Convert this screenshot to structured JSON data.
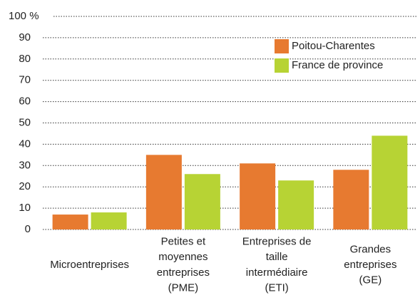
{
  "chart_data": {
    "type": "bar",
    "categories": [
      [
        "Microentreprises"
      ],
      [
        "Petites et",
        "moyennes",
        "entreprises",
        "(PME)"
      ],
      [
        "Entreprises de",
        "taille",
        "intermédiaire",
        "(ETI)"
      ],
      [
        "Grandes",
        "entreprises",
        "(GE)"
      ]
    ],
    "series": [
      {
        "name": "Poitou-Charentes",
        "color": "#e77a30",
        "values": [
          7,
          35,
          31,
          28
        ]
      },
      {
        "name": "France de province",
        "color": "#b7d334",
        "values": [
          8,
          26,
          23,
          44
        ]
      }
    ],
    "ylim": [
      0,
      100
    ],
    "yticks": [
      0,
      10,
      20,
      30,
      40,
      50,
      60,
      70,
      80,
      90,
      {
        "value": 100,
        "label": "100 %"
      }
    ],
    "grid": true,
    "legend": "top-right"
  }
}
